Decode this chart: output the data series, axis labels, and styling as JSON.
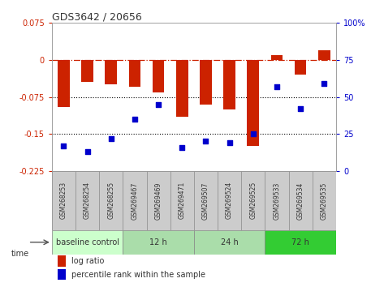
{
  "title": "GDS3642 / 20656",
  "samples": [
    "GSM268253",
    "GSM268254",
    "GSM268255",
    "GSM269467",
    "GSM269469",
    "GSM269471",
    "GSM269507",
    "GSM269524",
    "GSM269525",
    "GSM269533",
    "GSM269534",
    "GSM269535"
  ],
  "log_ratio": [
    -0.095,
    -0.045,
    -0.05,
    -0.055,
    -0.065,
    -0.115,
    -0.09,
    -0.1,
    -0.175,
    0.01,
    -0.03,
    0.02
  ],
  "percentile_rank": [
    17,
    13,
    22,
    35,
    45,
    16,
    20,
    19,
    25,
    57,
    42,
    59
  ],
  "ylim_left": [
    -0.225,
    0.075
  ],
  "ylim_right": [
    0,
    100
  ],
  "yticks_left": [
    0.075,
    0,
    -0.075,
    -0.15,
    -0.225
  ],
  "yticks_right": [
    100,
    75,
    50,
    25,
    0
  ],
  "bar_color": "#cc2200",
  "dot_color": "#0000cc",
  "group_labels": [
    "baseline control",
    "12 h",
    "24 h",
    "72 h"
  ],
  "group_starts": [
    0,
    3,
    6,
    9
  ],
  "group_ends": [
    3,
    6,
    9,
    12
  ],
  "group_colors": [
    "#ccffcc",
    "#aaddaa",
    "#aaddaa",
    "#33cc33"
  ],
  "xlabel_time": "time",
  "legend_bar_label": "log ratio",
  "legend_dot_label": "percentile rank within the sample",
  "bg_color": "#ffffff",
  "sample_box_color": "#cccccc",
  "sample_box_edge": "#888888"
}
